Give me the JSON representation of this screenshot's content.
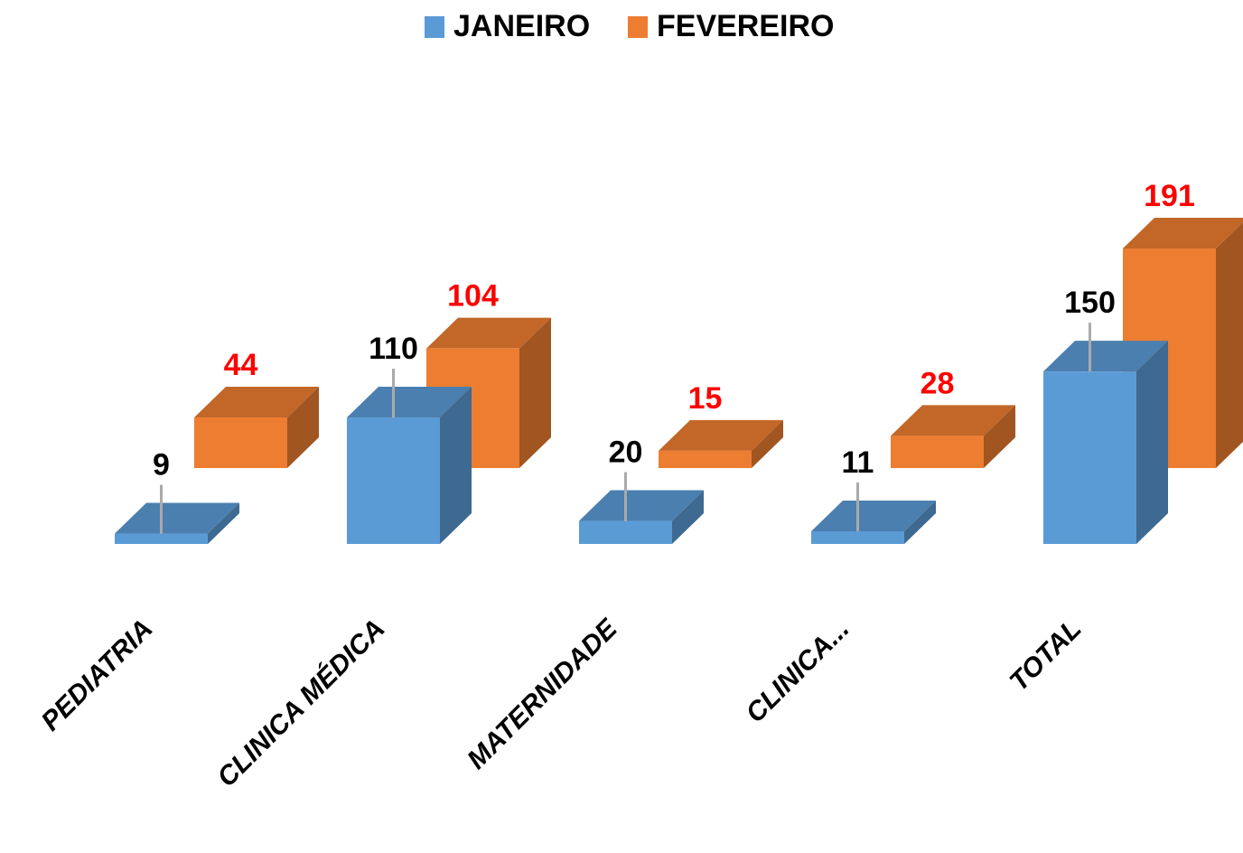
{
  "chart_data": {
    "type": "bar3d",
    "categories": [
      "PEDIATRIA",
      "CLINICA MÉDICA",
      "MATERNIDADE",
      "CLINICA...",
      "TOTAL"
    ],
    "series": [
      {
        "name": "JANEIRO",
        "color": "#5b9bd5",
        "label_color": "#000000",
        "values": [
          9,
          110,
          20,
          11,
          150
        ]
      },
      {
        "name": "FEVEREIRO",
        "color": "#ed7d31",
        "label_color": "#ff0000",
        "values": [
          44,
          104,
          15,
          28,
          191
        ]
      }
    ],
    "legend": "top"
  }
}
